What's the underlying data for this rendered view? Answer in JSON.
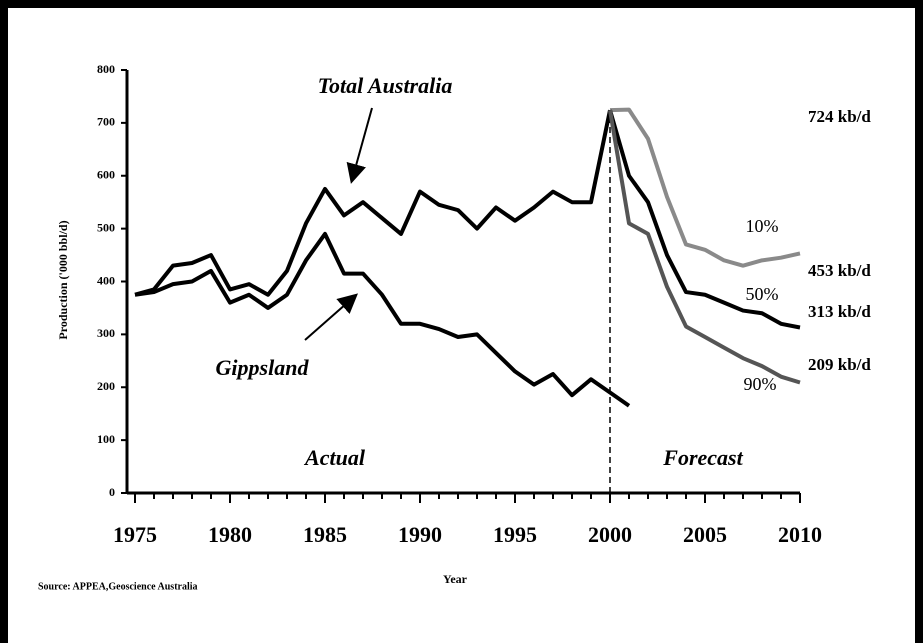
{
  "chart_data": {
    "type": "line",
    "y_label": "Production ('000 bbl/d)",
    "x_label": "Year",
    "source": "Source:  APPEA,Geoscience Australia",
    "xlim": [
      1975,
      2010
    ],
    "xticks": [
      1975,
      1980,
      1985,
      1990,
      1995,
      2000,
      2005,
      2010
    ],
    "xminorticks": [
      1975,
      1976,
      1977,
      1978,
      1979,
      1980,
      1981,
      1982,
      1983,
      1984,
      1985,
      1986,
      1987,
      1988,
      1989,
      1990,
      1991,
      1992,
      1993,
      1994,
      1995,
      1996,
      1997,
      1998,
      1999,
      2000,
      2001,
      2002,
      2003,
      2004,
      2005,
      2006,
      2007,
      2008,
      2009,
      2010
    ],
    "ylim": [
      0,
      800
    ],
    "yticks": [
      0,
      100,
      200,
      300,
      400,
      500,
      600,
      700,
      800
    ],
    "divider_x": 2000,
    "period_labels": [
      "Actual",
      "Forecast"
    ],
    "series": [
      {
        "name": "Total Australia",
        "color": "#000000",
        "x": [
          1975,
          1976,
          1977,
          1978,
          1979,
          1980,
          1981,
          1982,
          1983,
          1984,
          1985,
          1986,
          1987,
          1988,
          1989,
          1990,
          1991,
          1992,
          1993,
          1994,
          1995,
          1996,
          1997,
          1998,
          1999,
          2000
        ],
        "values": [
          375,
          385,
          430,
          435,
          450,
          385,
          395,
          375,
          420,
          510,
          575,
          525,
          550,
          520,
          490,
          570,
          545,
          535,
          500,
          540,
          515,
          540,
          570,
          550,
          550,
          724
        ]
      },
      {
        "name": "Gippsland",
        "color": "#000000",
        "x": [
          1975,
          1976,
          1977,
          1978,
          1979,
          1980,
          1981,
          1982,
          1983,
          1984,
          1985,
          1986,
          1987,
          1988,
          1989,
          1990,
          1991,
          1992,
          1993,
          1994,
          1995,
          1996,
          1997,
          1998,
          1999,
          2000,
          2001
        ],
        "values": [
          375,
          380,
          395,
          400,
          420,
          360,
          375,
          350,
          375,
          440,
          490,
          415,
          415,
          375,
          320,
          320,
          310,
          295,
          300,
          265,
          230,
          205,
          225,
          185,
          215,
          190,
          165
        ]
      },
      {
        "name": "10%",
        "color": "#8a8a8a",
        "x": [
          2000,
          2001,
          2002,
          2003,
          2004,
          2005,
          2006,
          2007,
          2008,
          2009,
          2010
        ],
        "values": [
          724,
          725,
          670,
          560,
          470,
          460,
          440,
          430,
          440,
          445,
          453
        ]
      },
      {
        "name": "50%",
        "color": "#000000",
        "x": [
          2000,
          2001,
          2002,
          2003,
          2004,
          2005,
          2006,
          2007,
          2008,
          2009,
          2010
        ],
        "values": [
          724,
          600,
          550,
          450,
          380,
          375,
          360,
          345,
          340,
          320,
          313
        ]
      },
      {
        "name": "90%",
        "color": "#555555",
        "x": [
          2000,
          2001,
          2002,
          2003,
          2004,
          2005,
          2006,
          2007,
          2008,
          2009,
          2010
        ],
        "values": [
          724,
          510,
          490,
          390,
          315,
          295,
          275,
          255,
          240,
          220,
          209
        ]
      }
    ],
    "annotations": [
      "724 kb/d",
      "453 kb/d",
      "313 kb/d",
      "209 kb/d"
    ]
  }
}
